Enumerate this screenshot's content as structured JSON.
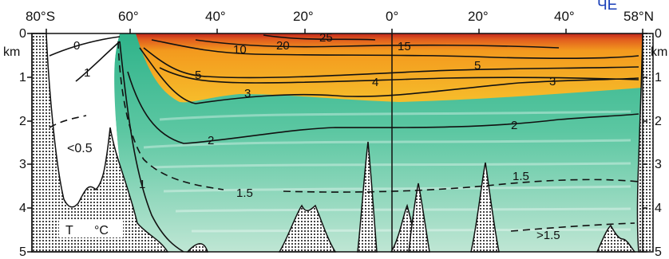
{
  "section": {
    "lat_labels": [
      "80°S",
      "60°",
      "40°",
      "20°",
      "0°",
      "20°",
      "40°",
      "58°N"
    ],
    "depth_labels": [
      "0",
      "1",
      "2",
      "3",
      "4",
      "5"
    ],
    "depth_unit": "km",
    "corner_text": "ЧЕ",
    "contour_labels": [
      "0",
      "1",
      "25",
      "20",
      "10",
      "15",
      "5",
      "5",
      "4",
      "3",
      "3",
      "2",
      "2",
      "1",
      "1.5",
      "1.5",
      "<0.5",
      ">1.5"
    ],
    "legend": {
      "symbol": "T",
      "unit": "°C"
    }
  },
  "colors": {
    "warm_red": "#c0261e",
    "warm_orange": "#f39a1e",
    "warm_yellow": "#f6bd2b",
    "deep_green": "#2fb38a",
    "light_green": "#a8dcc6",
    "contour": "#111111"
  }
}
